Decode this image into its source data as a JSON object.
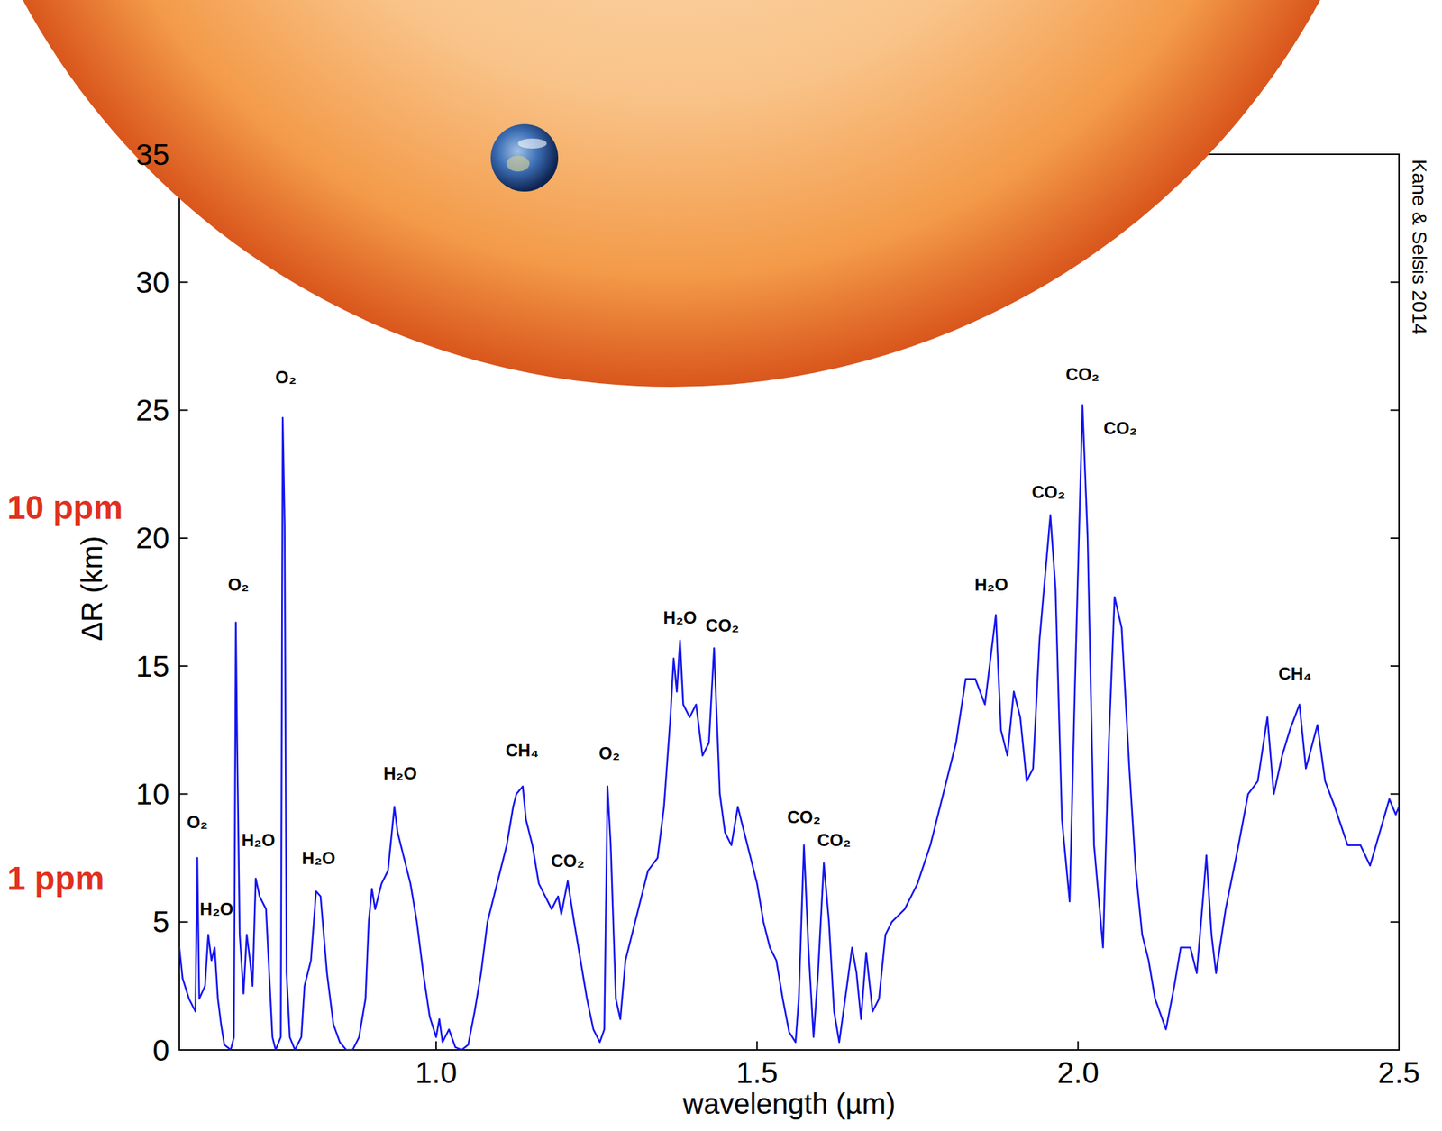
{
  "chart_data": {
    "type": "line",
    "x_label": "wavelength (µm)",
    "y_label": "ΔR (km)",
    "credit": "Kane & Selsis 2014",
    "xlim": [
      0.6,
      2.5
    ],
    "ylim": [
      0,
      35
    ],
    "xticks": [
      {
        "value": 1,
        "label": "1.0"
      },
      1.5,
      {
        "value": 2,
        "label": "2.0"
      },
      2.5
    ],
    "yticks": [
      0,
      5,
      10,
      15,
      20,
      25,
      30,
      35
    ],
    "grid": false,
    "x": [
      0.6,
      0.605,
      0.615,
      0.625,
      0.628,
      0.631,
      0.64,
      0.645,
      0.65,
      0.655,
      0.66,
      0.665,
      0.67,
      0.68,
      0.685,
      0.688,
      0.69,
      0.694,
      0.7,
      0.705,
      0.71,
      0.714,
      0.719,
      0.725,
      0.735,
      0.74,
      0.745,
      0.75,
      0.758,
      0.761,
      0.764,
      0.767,
      0.772,
      0.78,
      0.79,
      0.795,
      0.805,
      0.813,
      0.82,
      0.825,
      0.83,
      0.84,
      0.85,
      0.86,
      0.87,
      0.88,
      0.89,
      0.895,
      0.9,
      0.905,
      0.915,
      0.925,
      0.935,
      0.94,
      0.95,
      0.96,
      0.97,
      0.98,
      0.99,
      1.0,
      1.005,
      1.01,
      1.02,
      1.03,
      1.04,
      1.05,
      1.06,
      1.07,
      1.08,
      1.09,
      1.1,
      1.11,
      1.12,
      1.125,
      1.135,
      1.14,
      1.15,
      1.16,
      1.17,
      1.18,
      1.19,
      1.195,
      1.205,
      1.215,
      1.225,
      1.235,
      1.245,
      1.255,
      1.262,
      1.267,
      1.272,
      1.28,
      1.287,
      1.295,
      1.31,
      1.32,
      1.33,
      1.345,
      1.355,
      1.365,
      1.37,
      1.375,
      1.38,
      1.385,
      1.395,
      1.405,
      1.415,
      1.425,
      1.433,
      1.442,
      1.45,
      1.46,
      1.47,
      1.48,
      1.49,
      1.5,
      1.51,
      1.52,
      1.53,
      1.54,
      1.55,
      1.56,
      1.565,
      1.573,
      1.58,
      1.588,
      1.595,
      1.604,
      1.612,
      1.62,
      1.628,
      1.64,
      1.648,
      1.655,
      1.662,
      1.67,
      1.68,
      1.69,
      1.7,
      1.71,
      1.73,
      1.75,
      1.77,
      1.79,
      1.81,
      1.825,
      1.84,
      1.855,
      1.872,
      1.88,
      1.89,
      1.9,
      1.91,
      1.92,
      1.93,
      1.94,
      1.957,
      1.965,
      1.975,
      1.987,
      1.995,
      2.007,
      2.015,
      2.025,
      2.039,
      2.048,
      2.057,
      2.068,
      2.08,
      2.09,
      2.1,
      2.11,
      2.12,
      2.137,
      2.15,
      2.16,
      2.175,
      2.185,
      2.195,
      2.2,
      2.208,
      2.215,
      2.23,
      2.25,
      2.265,
      2.28,
      2.295,
      2.305,
      2.318,
      2.33,
      2.345,
      2.355,
      2.373,
      2.385,
      2.4,
      2.42,
      2.44,
      2.455,
      2.47,
      2.485,
      2.495,
      2.5
    ],
    "series": [
      {
        "color": "#1515f0",
        "values": [
          4.0,
          2.8,
          2.0,
          1.5,
          7.5,
          2.0,
          2.5,
          4.5,
          3.5,
          4.0,
          2.0,
          1.0,
          0.2,
          0.0,
          0.5,
          16.7,
          12.0,
          4.5,
          2.2,
          4.5,
          3.5,
          2.5,
          6.7,
          6.0,
          5.5,
          3.0,
          0.5,
          0.0,
          0.5,
          24.7,
          20.5,
          3.0,
          0.5,
          0.0,
          0.5,
          2.5,
          3.5,
          6.2,
          6.0,
          4.5,
          3.0,
          1.0,
          0.3,
          0.0,
          0.0,
          0.5,
          2.0,
          5.0,
          6.3,
          5.5,
          6.5,
          7.0,
          9.5,
          8.5,
          7.5,
          6.5,
          5.0,
          3.0,
          1.3,
          0.5,
          1.2,
          0.3,
          0.8,
          0.1,
          0.0,
          0.2,
          1.5,
          3.0,
          5.0,
          6.0,
          7.0,
          8.0,
          9.5,
          10.0,
          10.3,
          9.0,
          8.0,
          6.5,
          6.0,
          5.5,
          6.0,
          5.3,
          6.6,
          5.0,
          3.5,
          2.0,
          0.8,
          0.3,
          0.8,
          10.3,
          8.0,
          2.0,
          1.2,
          3.5,
          5.0,
          6.0,
          7.0,
          7.5,
          9.5,
          13.0,
          15.3,
          14.0,
          16.0,
          13.5,
          13.0,
          13.5,
          11.5,
          12.0,
          15.7,
          10.0,
          8.5,
          8.0,
          9.5,
          8.5,
          7.5,
          6.5,
          5.0,
          4.0,
          3.5,
          2.0,
          0.7,
          0.3,
          2.0,
          8.0,
          4.0,
          0.5,
          3.0,
          7.3,
          5.0,
          1.5,
          0.3,
          2.5,
          4.0,
          3.0,
          1.2,
          3.8,
          1.5,
          2.0,
          4.5,
          5.0,
          5.5,
          6.5,
          8.0,
          10.0,
          12.0,
          14.5,
          14.5,
          13.5,
          17.0,
          12.5,
          11.5,
          14.0,
          13.0,
          10.5,
          11.0,
          16.0,
          20.9,
          18.0,
          9.0,
          5.8,
          14.0,
          25.2,
          20.0,
          8.0,
          4.0,
          12.0,
          17.7,
          16.5,
          11.0,
          7.0,
          4.5,
          3.5,
          2.0,
          0.8,
          2.5,
          4.0,
          4.0,
          3.0,
          6.0,
          7.6,
          4.5,
          3.0,
          5.5,
          8.0,
          10.0,
          10.5,
          13.0,
          10.0,
          11.5,
          12.5,
          13.5,
          11.0,
          12.7,
          10.5,
          9.5,
          8.0,
          8.0,
          7.2,
          8.5,
          9.8,
          9.2,
          9.5
        ]
      }
    ],
    "annotations": [
      {
        "text": "O₂",
        "x": 0.628,
        "y": 8.9
      },
      {
        "text": "H₂O",
        "x": 0.658,
        "y": 5.5
      },
      {
        "text": "O₂",
        "x": 0.692,
        "y": 18.2
      },
      {
        "text": "H₂O",
        "x": 0.723,
        "y": 8.2
      },
      {
        "text": "O₂",
        "x": 0.766,
        "y": 26.3
      },
      {
        "text": "H₂O",
        "x": 0.817,
        "y": 7.5
      },
      {
        "text": "H₂O",
        "x": 0.944,
        "y": 10.8
      },
      {
        "text": "CH₄",
        "x": 1.134,
        "y": 11.7
      },
      {
        "text": "CO₂",
        "x": 1.205,
        "y": 7.4
      },
      {
        "text": "O₂",
        "x": 1.27,
        "y": 11.6
      },
      {
        "text": "H₂O",
        "x": 1.38,
        "y": 16.9
      },
      {
        "text": "CO₂",
        "x": 1.446,
        "y": 16.6
      },
      {
        "text": "CO₂",
        "x": 1.573,
        "y": 9.1
      },
      {
        "text": "CO₂",
        "x": 1.62,
        "y": 8.2
      },
      {
        "text": "H₂O",
        "x": 1.865,
        "y": 18.2
      },
      {
        "text": "CO₂",
        "x": 1.954,
        "y": 21.8
      },
      {
        "text": "CO₂",
        "x": 2.007,
        "y": 26.4
      },
      {
        "text": "CO₂",
        "x": 2.066,
        "y": 24.3
      },
      {
        "text": "CH₄",
        "x": 2.338,
        "y": 14.7
      },
      {
        "text": "10 ppm",
        "y": 21.2,
        "color": "#e0301e"
      },
      {
        "text": "1 ppm",
        "y": 6.7,
        "color": "#e0301e"
      }
    ]
  }
}
